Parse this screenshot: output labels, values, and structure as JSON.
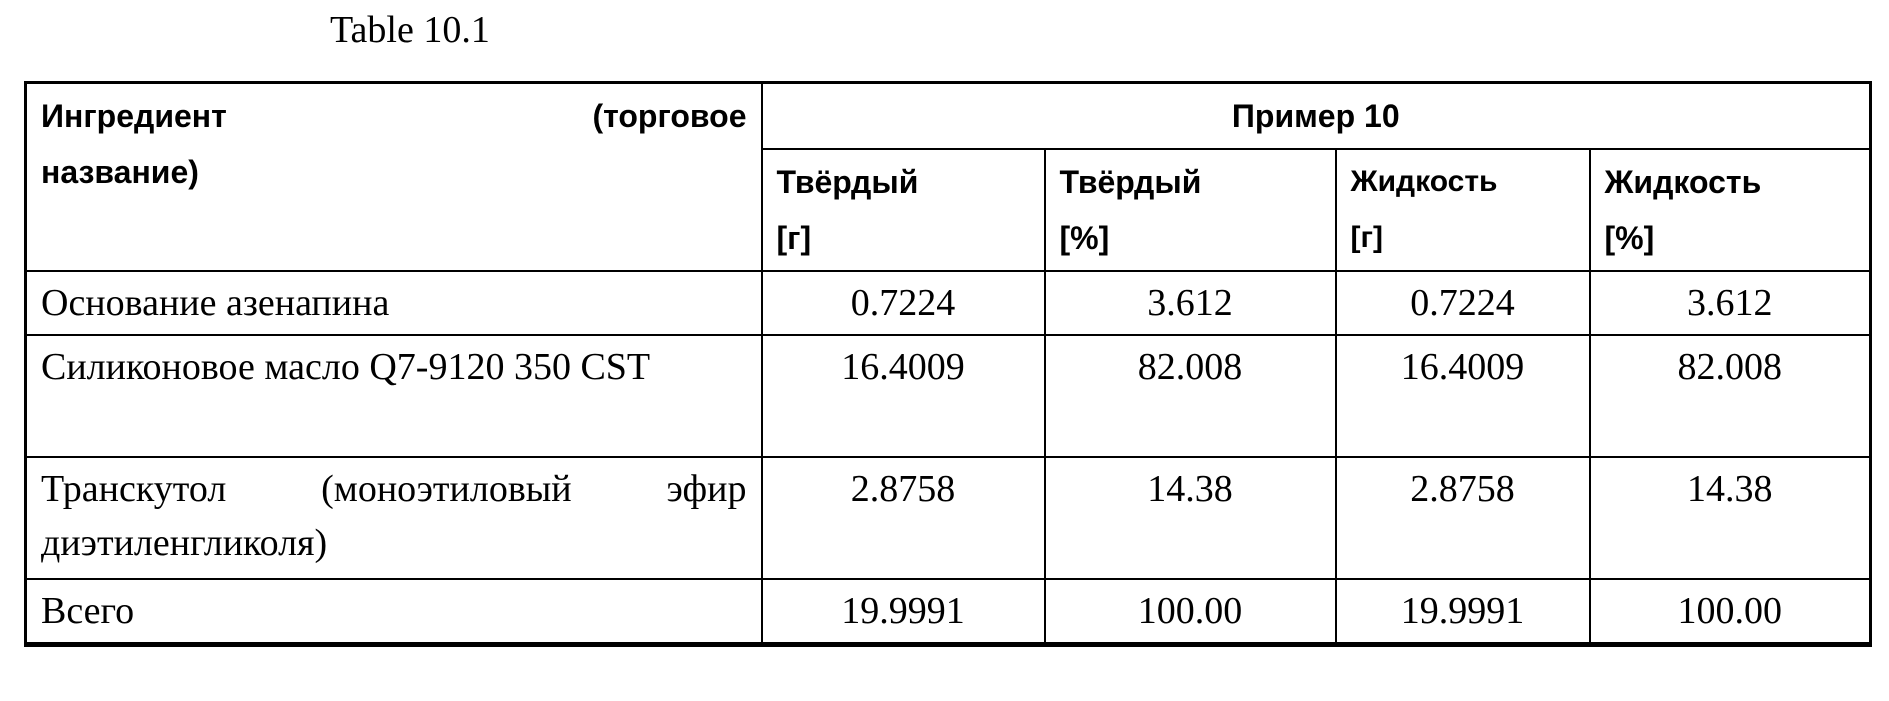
{
  "title": "Table 10.1",
  "table": {
    "ingredient_header_line1_left": "Ингредиент",
    "ingredient_header_line1_right": "(торговое",
    "ingredient_header_line2": "название)",
    "group_header": "Пример 10",
    "columns": [
      {
        "name": "Твёрдый",
        "unit": "[г]"
      },
      {
        "name": "Твёрдый",
        "unit": "[%]"
      },
      {
        "name": "Жидкость",
        "unit": "[г]"
      },
      {
        "name": "Жидкость",
        "unit": "[%]"
      }
    ],
    "rows": [
      {
        "ingredient": "Основание азенапина",
        "values": [
          "0.7224",
          "3.612",
          "0.7224",
          "3.612"
        ]
      },
      {
        "ingredient": "Силиконовое масло Q7-9120 350 CST",
        "values": [
          "16.4009",
          "82.008",
          "16.4009",
          "82.008"
        ]
      },
      {
        "ingredient": "Транскутол (моноэтиловый эфир диэтиленгликоля)",
        "values": [
          "2.8758",
          "14.38",
          "2.8758",
          "14.38"
        ]
      },
      {
        "ingredient": "Всего",
        "values": [
          "19.9991",
          "100.00",
          "19.9991",
          "100.00"
        ]
      }
    ]
  }
}
